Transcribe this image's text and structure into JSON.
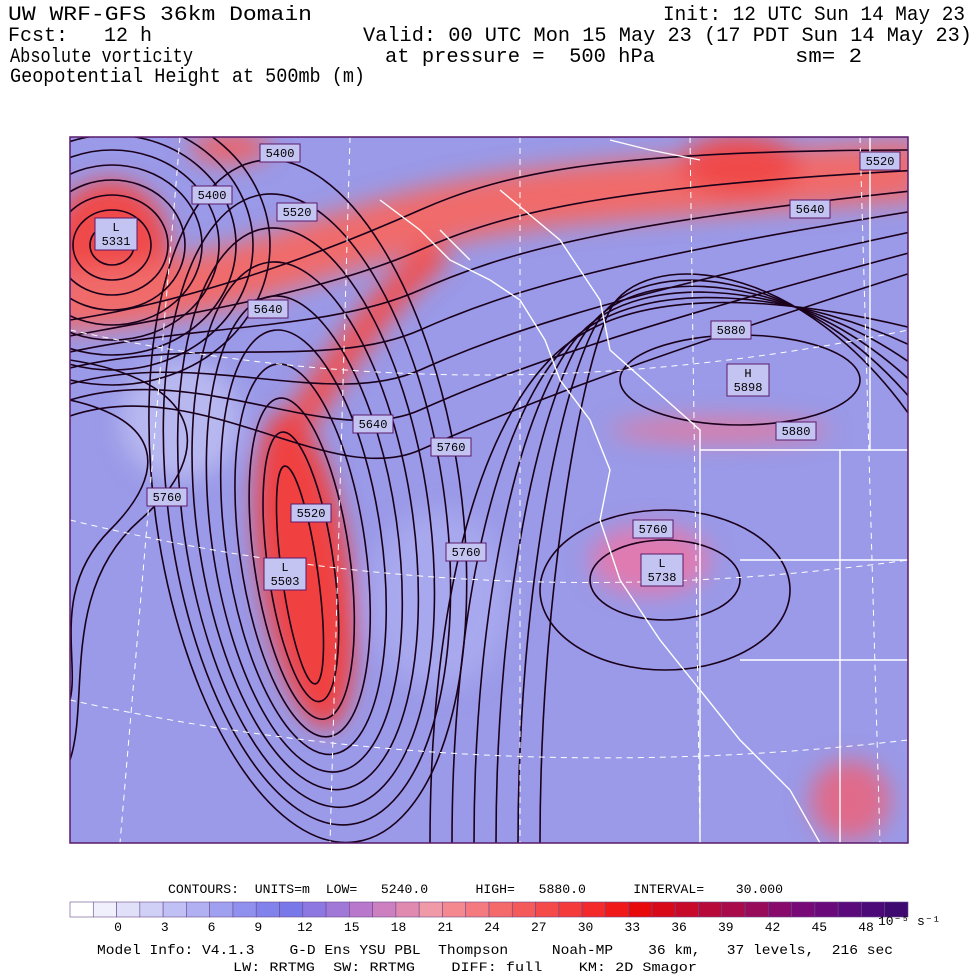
{
  "header": {
    "title": "UW WRF-GFS 36km Domain",
    "init": "Init: 12 UTC Sun 14 May 23",
    "fcst": "Fcst:   12 h",
    "valid": "Valid: 00 UTC Mon 15 May 23 (17 PDT Sun 14 May 23)",
    "field": "Absolute vorticity",
    "pressure": "at pressure =  500 hPa",
    "smoothing": "sm= 2",
    "contour_field": "Geopotential Height at 500mb (m)"
  },
  "map": {
    "contour_labels": [
      "5400",
      "5400",
      "5520",
      "5520",
      "5640",
      "5640",
      "5640",
      "5760",
      "5760",
      "5760",
      "5760",
      "5880",
      "5880",
      "5520"
    ],
    "centers": [
      {
        "type": "L",
        "value": "5331"
      },
      {
        "type": "L",
        "value": "5503"
      },
      {
        "type": "L",
        "value": "5738"
      },
      {
        "type": "H",
        "value": "5898"
      }
    ]
  },
  "footer": {
    "contours": "CONTOURS:  UNITS=m  LOW=   5240.0      HIGH=   5880.0      INTERVAL=    30.000",
    "colorbar_ticks": [
      "0",
      "3",
      "6",
      "9",
      "12",
      "15",
      "18",
      "21",
      "24",
      "27",
      "30",
      "33",
      "36",
      "39",
      "42",
      "45",
      "48"
    ],
    "colorbar_units": "10⁻⁵ s⁻¹",
    "model_info": "Model Info: V4.1.3    G-D Ens YSU PBL  Thompson     Noah-MP    36 km,   37 levels,  216 sec",
    "physics": "LW: RRTMG  SW: RRTMG    DIFF: full    KM: 2D Smagor"
  }
}
